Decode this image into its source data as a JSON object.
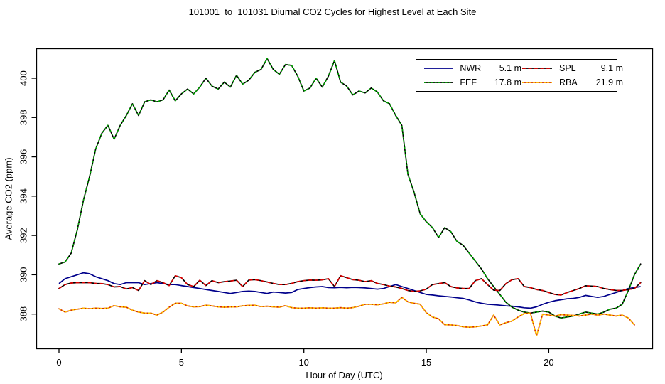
{
  "page": {
    "title": "101001  to  101031 Diurnal CO2 Cycles for Highest Level at Each Site"
  },
  "chart_data": {
    "type": "line",
    "title": "101001  to  101031 Diurnal CO2 Cycles for Highest Level at Each Site",
    "xlabel": "Hour of Day (UTC)",
    "ylabel": "Average CO2 (ppm)",
    "xlim": [
      -0.93,
      24.23
    ],
    "ylim": [
      386.25,
      401.52
    ],
    "xticks": [
      0,
      5,
      10,
      15,
      20
    ],
    "yticks": [
      388,
      390,
      392,
      394,
      396,
      398,
      400
    ],
    "grid": false,
    "legend_position": "top-right",
    "x_start": 0,
    "x_step": 0.25,
    "series": [
      {
        "name": "NWR",
        "height": "5.1 m",
        "color": "#00008B",
        "underlay": null,
        "dash": null,
        "values": [
          389.55,
          389.8,
          389.9,
          390.0,
          390.1,
          390.05,
          389.9,
          389.8,
          389.7,
          389.55,
          389.5,
          389.6,
          389.6,
          389.6,
          389.5,
          389.55,
          389.6,
          389.55,
          389.5,
          389.5,
          389.45,
          389.4,
          389.35,
          389.3,
          389.25,
          389.2,
          389.15,
          389.1,
          389.05,
          389.1,
          389.15,
          389.17,
          389.15,
          389.1,
          389.05,
          389.12,
          389.1,
          389.07,
          389.1,
          389.25,
          389.3,
          389.35,
          389.38,
          389.4,
          389.35,
          389.34,
          389.36,
          389.34,
          389.36,
          389.35,
          389.33,
          389.3,
          389.27,
          389.3,
          389.4,
          389.5,
          389.4,
          389.3,
          389.2,
          389.1,
          389.0,
          388.97,
          388.93,
          388.9,
          388.87,
          388.83,
          388.8,
          388.72,
          388.62,
          388.55,
          388.5,
          388.48,
          388.45,
          388.42,
          388.4,
          388.37,
          388.32,
          388.3,
          388.37,
          388.5,
          388.6,
          388.68,
          388.73,
          388.78,
          388.8,
          388.85,
          388.95,
          388.9,
          388.85,
          388.9,
          389.0,
          389.1,
          389.2,
          389.3,
          389.35,
          389.4
        ]
      },
      {
        "name": "FEF",
        "height": "17.8 m",
        "color": "#00A300",
        "underlay": "#000000",
        "dash": "2.5 2.5",
        "values": [
          390.55,
          390.65,
          391.1,
          392.3,
          393.8,
          395.0,
          396.4,
          397.2,
          397.6,
          396.9,
          397.6,
          398.1,
          398.7,
          398.1,
          398.8,
          398.9,
          398.8,
          398.9,
          399.4,
          398.85,
          399.2,
          399.45,
          399.2,
          399.55,
          400.0,
          399.6,
          399.45,
          399.8,
          399.55,
          400.15,
          399.7,
          399.9,
          400.3,
          400.45,
          401.0,
          400.45,
          400.2,
          400.7,
          400.65,
          400.1,
          399.35,
          399.5,
          400.0,
          399.55,
          400.1,
          400.9,
          399.8,
          399.6,
          399.15,
          399.35,
          399.25,
          399.5,
          399.3,
          398.85,
          398.7,
          398.1,
          397.6,
          395.1,
          394.2,
          393.1,
          392.7,
          392.4,
          391.9,
          392.4,
          392.2,
          391.7,
          391.5,
          391.1,
          390.7,
          390.3,
          389.8,
          389.4,
          389.0,
          388.6,
          388.35,
          388.2,
          388.1,
          388.05,
          388.1,
          388.15,
          388.1,
          387.9,
          387.8,
          387.85,
          387.9,
          388.0,
          388.1,
          388.05,
          388.0,
          388.1,
          388.25,
          388.3,
          388.5,
          389.2,
          390.0,
          390.55
        ]
      },
      {
        "name": "SPL",
        "height": "9.1 m",
        "color": "#DD0000",
        "underlay": "#000000",
        "dash": "5 3.5",
        "values": [
          389.3,
          389.5,
          389.58,
          389.6,
          389.6,
          389.6,
          389.56,
          389.55,
          389.5,
          389.38,
          389.4,
          389.28,
          389.35,
          389.2,
          389.7,
          389.5,
          389.7,
          389.6,
          389.45,
          389.95,
          389.85,
          389.5,
          389.4,
          389.72,
          389.45,
          389.7,
          389.6,
          389.65,
          389.68,
          389.72,
          389.4,
          389.73,
          389.75,
          389.7,
          389.63,
          389.56,
          389.5,
          389.5,
          389.56,
          389.65,
          389.7,
          389.73,
          389.72,
          389.74,
          389.8,
          389.4,
          389.95,
          389.85,
          389.75,
          389.72,
          389.65,
          389.7,
          389.56,
          389.5,
          389.42,
          389.38,
          389.3,
          389.2,
          389.15,
          389.18,
          389.27,
          389.5,
          389.55,
          389.6,
          389.4,
          389.33,
          389.3,
          389.3,
          389.7,
          389.8,
          389.5,
          389.22,
          389.2,
          389.55,
          389.75,
          389.8,
          389.4,
          389.35,
          389.25,
          389.2,
          389.1,
          389.0,
          388.97,
          389.1,
          389.2,
          389.3,
          389.44,
          389.42,
          389.4,
          389.3,
          389.25,
          389.2,
          389.2,
          389.25,
          389.3,
          389.6
        ]
      },
      {
        "name": "RBA",
        "height": "21.9 m",
        "color": "#FFC400",
        "underlay": "#D42A00",
        "dash": "3 2",
        "values": [
          388.27,
          388.1,
          388.2,
          388.25,
          388.3,
          388.27,
          388.3,
          388.28,
          388.3,
          388.43,
          388.37,
          388.35,
          388.2,
          388.1,
          388.05,
          388.05,
          387.95,
          388.1,
          388.35,
          388.55,
          388.55,
          388.42,
          388.37,
          388.38,
          388.45,
          388.42,
          388.37,
          388.35,
          388.36,
          388.37,
          388.42,
          388.44,
          388.45,
          388.38,
          388.4,
          388.37,
          388.35,
          388.43,
          388.33,
          388.3,
          388.3,
          388.32,
          388.3,
          388.32,
          388.3,
          388.3,
          388.33,
          388.3,
          388.33,
          388.4,
          388.5,
          388.5,
          388.47,
          388.52,
          388.6,
          388.57,
          388.85,
          388.62,
          388.55,
          388.5,
          388.07,
          387.85,
          387.76,
          387.46,
          387.45,
          387.42,
          387.35,
          387.33,
          387.35,
          387.4,
          387.45,
          387.95,
          387.45,
          387.56,
          387.65,
          387.85,
          388.03,
          388.05,
          386.9,
          388.0,
          387.95,
          387.9,
          387.97,
          387.95,
          387.93,
          387.9,
          387.95,
          388.0,
          387.95,
          388.0,
          387.95,
          387.9,
          387.95,
          387.8,
          387.45
        ]
      }
    ]
  }
}
